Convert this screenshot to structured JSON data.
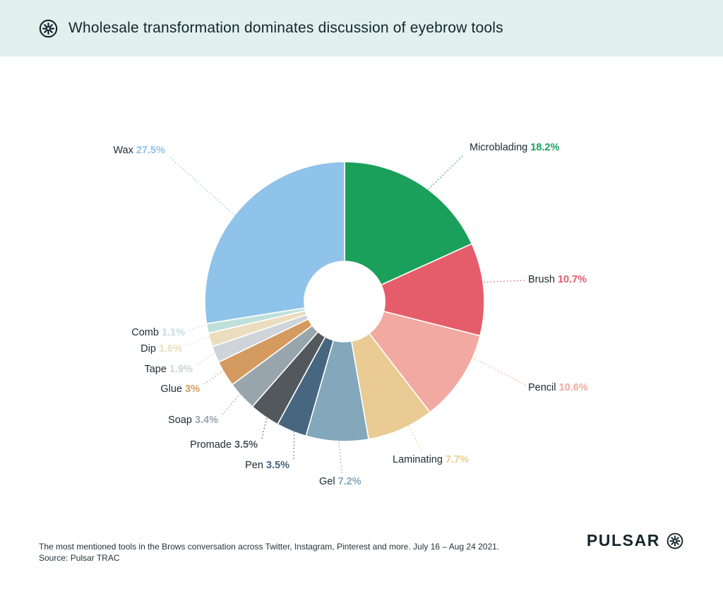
{
  "header": {
    "title": "Wholesale transformation dominates discussion of eyebrow tools",
    "bg_color": "#E2F0EE",
    "logo": "pulsar-asterisk-icon"
  },
  "chart_data": {
    "type": "pie",
    "donut": true,
    "title": "Wholesale transformation dominates discussion of eyebrow tools",
    "start_angle": "top",
    "direction": "clockwise",
    "legend_position": "around-slices",
    "segments": [
      {
        "label": "Microblading",
        "value": 18.2,
        "display": "18.2%",
        "color": "#1BA05C"
      },
      {
        "label": "Brush",
        "value": 10.7,
        "display": "10.7%",
        "color": "#E55D6B"
      },
      {
        "label": "Pencil",
        "value": 10.6,
        "display": "10.6%",
        "color": "#F2A9A1"
      },
      {
        "label": "Laminating",
        "value": 7.7,
        "display": "7.7%",
        "color": "#E9CB93"
      },
      {
        "label": "Gel",
        "value": 7.2,
        "display": "7.2%",
        "color": "#83A7BB"
      },
      {
        "label": "Pen",
        "value": 3.5,
        "display": "3.5%",
        "color": "#47667F"
      },
      {
        "label": "Promade",
        "value": 3.5,
        "display": "3.5%",
        "color": "#53585D"
      },
      {
        "label": "Soap",
        "value": 3.4,
        "display": "3.4%",
        "color": "#99A5AD"
      },
      {
        "label": "Glue",
        "value": 3.0,
        "display": "3%",
        "color": "#D59A5F"
      },
      {
        "label": "Tape",
        "value": 1.9,
        "display": "1.9%",
        "color": "#CED4D9"
      },
      {
        "label": "Dip",
        "value": 1.6,
        "display": "1.6%",
        "color": "#EBDDBD"
      },
      {
        "label": "Comb",
        "value": 1.1,
        "display": "1.1%",
        "color": "#BFE0DA"
      },
      {
        "label": "Wax",
        "value": 27.5,
        "display": "27.5%",
        "color": "#8FC3EA"
      }
    ]
  },
  "footer": {
    "caption_line1": "The most mentioned tools in the Brows conversation across Twitter, Instagram, Pinterest and more. July 16 – Aug 24 2021.",
    "caption_line2": "Source: Pulsar TRAC",
    "brand": "PULSAR"
  }
}
